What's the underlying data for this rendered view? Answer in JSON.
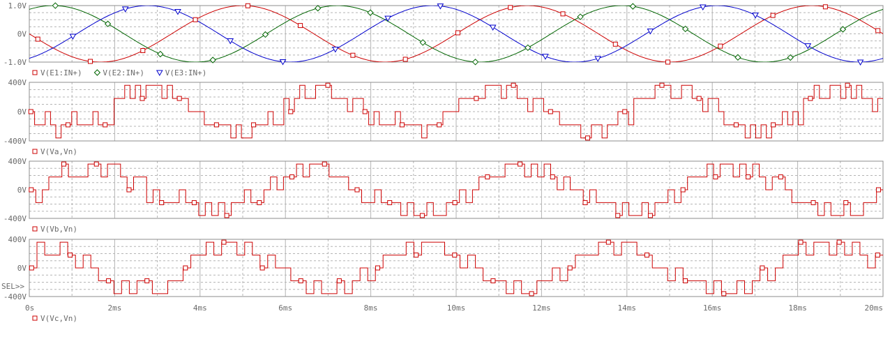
{
  "app": {
    "sel_marker": "SEL>>"
  },
  "colors": {
    "red": "#cc0000",
    "green": "#006400",
    "blue": "#0000cc",
    "grid": "#b4b4b4",
    "frame": "#8c8c8c",
    "text": "#6a6a6a"
  },
  "x_axis": {
    "min": 0,
    "max": 20,
    "ticks": [
      0,
      2,
      4,
      6,
      8,
      10,
      12,
      14,
      16,
      18,
      20
    ],
    "tick_labels": [
      "0s",
      "2ms",
      "4ms",
      "6ms",
      "8ms",
      "10ms",
      "12ms",
      "14ms",
      "16ms",
      "18ms",
      "20ms"
    ]
  },
  "chart_data": [
    {
      "type": "line",
      "ylim": [
        -1.0,
        1.0
      ],
      "yticks": [
        -1.0,
        0,
        1.0
      ],
      "ytick_labels": [
        "-1.0V",
        "0V",
        "1.0V"
      ],
      "x_unit": "ms",
      "frequency_hz": 150,
      "series": [
        {
          "name": "V(E1:IN+)",
          "marker": "square",
          "color": "#cc0000",
          "amplitude": 1.0,
          "phase_deg": 180
        },
        {
          "name": "V(E2:IN+)",
          "marker": "diamond",
          "color": "#006400",
          "amplitude": 1.0,
          "phase_deg": 60
        },
        {
          "name": "V(E3:IN+)",
          "marker": "triangle",
          "color": "#0000cc",
          "amplitude": 1.0,
          "phase_deg": -60
        }
      ]
    },
    {
      "type": "line",
      "ylim": [
        -400,
        400
      ],
      "yticks": [
        -400,
        0,
        400
      ],
      "ytick_labels": [
        "-400V",
        "0V",
        "400V"
      ],
      "series": [
        {
          "name": "V(Va,Vn)",
          "marker": "square",
          "color": "#cc0000",
          "levels": [
            0,
            -180,
            -180,
            0,
            -180,
            -360,
            -180,
            -180,
            0,
            -180,
            -180,
            -180,
            0,
            -180,
            -180,
            -180,
            180,
            180,
            360,
            180,
            360,
            180,
            360,
            360,
            360,
            180,
            360,
            180,
            180,
            180,
            0,
            0,
            0,
            -180,
            -180,
            -180,
            -180,
            -180,
            -360,
            -180,
            -360,
            -360,
            -180,
            -180,
            -180,
            0,
            -180,
            -180,
            180,
            0,
            180,
            360,
            180,
            180,
            360,
            360,
            360,
            180,
            180,
            180,
            0,
            180,
            180,
            0,
            -180,
            0,
            -180,
            -180,
            -180,
            0,
            -180,
            -180,
            -180,
            -180,
            -360,
            -180,
            -180,
            -180,
            0,
            0,
            0,
            180,
            180,
            180,
            180,
            180,
            360,
            360,
            360,
            180,
            360,
            360,
            180,
            180,
            0,
            180,
            180,
            0,
            0,
            0,
            -180,
            -180,
            -180,
            -180,
            -360,
            -360,
            -180,
            -180,
            -360,
            -180,
            -180,
            0,
            0,
            -180,
            180,
            180,
            180,
            180,
            360,
            360,
            360,
            180,
            180,
            360,
            360,
            180,
            180,
            0,
            180,
            180,
            0,
            -180,
            -180,
            -180,
            -180,
            -360,
            -180,
            -360,
            -180,
            -360,
            -180,
            -180,
            0,
            -180,
            0,
            -180,
            180,
            180,
            360,
            180,
            180,
            360,
            360,
            180,
            360,
            180,
            360,
            180,
            180,
            0,
            180
          ]
        }
      ]
    },
    {
      "type": "line",
      "ylim": [
        -400,
        400
      ],
      "yticks": [
        -400,
        0,
        400
      ],
      "ytick_labels": [
        "-400V",
        "0V",
        "400V"
      ],
      "series": [
        {
          "name": "V(Vb,Vn)",
          "marker": "square",
          "color": "#cc0000",
          "levels": [
            0,
            -180,
            0,
            180,
            180,
            360,
            180,
            180,
            180,
            360,
            360,
            180,
            360,
            360,
            180,
            0,
            180,
            180,
            -180,
            0,
            -180,
            -180,
            -180,
            0,
            -180,
            -180,
            -360,
            -180,
            -360,
            -180,
            -360,
            -180,
            -180,
            0,
            -180,
            -180,
            0,
            180,
            0,
            180,
            180,
            360,
            180,
            360,
            360,
            360,
            180,
            180,
            180,
            0,
            0,
            -180,
            -180,
            0,
            -180,
            -180,
            -180,
            -360,
            -180,
            -360,
            -360,
            -180,
            -360,
            -360,
            -180,
            -180,
            0,
            -180,
            0,
            180,
            180,
            180,
            180,
            360,
            360,
            360,
            180,
            360,
            180,
            360,
            180,
            0,
            180,
            0,
            0,
            -180,
            0,
            -180,
            -180,
            -180,
            -360,
            -180,
            -360,
            -360,
            -180,
            -360,
            -180,
            -180,
            0,
            -180,
            0,
            180,
            180,
            180,
            360,
            180,
            360,
            360,
            180,
            360,
            180,
            360,
            180,
            0,
            180,
            180,
            0,
            -180,
            -180,
            -180,
            -180,
            -360,
            -180,
            -360,
            -360,
            -180,
            -360,
            -360,
            -180,
            -180,
            0
          ]
        }
      ]
    },
    {
      "type": "line",
      "ylim": [
        -400,
        400
      ],
      "yticks": [
        -400,
        0,
        400
      ],
      "ytick_labels": [
        "-400V",
        "0V",
        "400V"
      ],
      "series": [
        {
          "name": "V(Vc,Vn)",
          "marker": "square",
          "color": "#cc0000",
          "levels": [
            0,
            360,
            180,
            180,
            360,
            180,
            0,
            180,
            0,
            -180,
            -180,
            -360,
            -180,
            -360,
            -180,
            -180,
            -360,
            -360,
            -180,
            -180,
            0,
            180,
            180,
            360,
            180,
            360,
            360,
            180,
            360,
            180,
            0,
            180,
            0,
            0,
            -180,
            -180,
            -360,
            -180,
            -360,
            -360,
            -180,
            -360,
            -180,
            0,
            -180,
            0,
            180,
            180,
            180,
            360,
            180,
            360,
            360,
            360,
            180,
            180,
            0,
            180,
            0,
            -180,
            -180,
            -180,
            -360,
            -180,
            -360,
            -360,
            -180,
            -180,
            0,
            -180,
            0,
            180,
            180,
            180,
            360,
            360,
            180,
            360,
            360,
            180,
            180,
            0,
            0,
            -180,
            0,
            -180,
            -180,
            -180,
            -360,
            -180,
            -360,
            -360,
            -180,
            -360,
            -180,
            0,
            -180,
            0,
            180,
            180,
            360,
            180,
            360,
            360,
            180,
            360,
            180,
            360,
            180,
            0,
            180
          ]
        }
      ]
    }
  ]
}
